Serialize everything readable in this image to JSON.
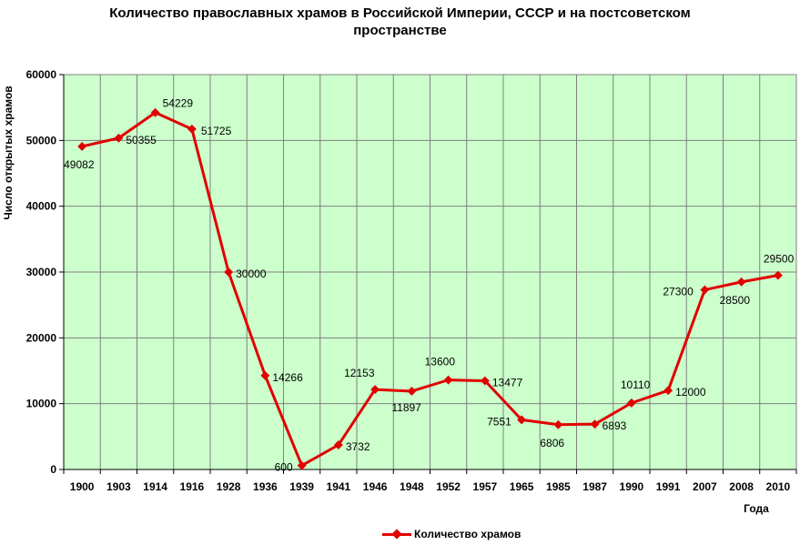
{
  "title_line1": "Количество православных храмов в Российской Империи, СССР и на постсоветском",
  "title_line2": "пространстве",
  "chart_data": {
    "type": "line",
    "title": "Количество православных храмов в Российской Империи, СССР и на постсоветском пространстве",
    "xlabel": "Года",
    "ylabel": "Число открытых храмов",
    "categories": [
      "1900",
      "1903",
      "1914",
      "1916",
      "1928",
      "1936",
      "1939",
      "1941",
      "1946",
      "1948",
      "1952",
      "1957",
      "1965",
      "1985",
      "1987",
      "1990",
      "1991",
      "2007",
      "2008",
      "2010"
    ],
    "series": [
      {
        "name": "Количество храмов",
        "color": "#e00000",
        "values": [
          49082,
          50355,
          54229,
          51725,
          30000,
          14266,
          600,
          3732,
          12153,
          11897,
          13600,
          13477,
          7551,
          6806,
          6893,
          10110,
          12000,
          27300,
          28500,
          29500
        ]
      }
    ],
    "ylim": [
      0,
      60000
    ],
    "yticks": [
      0,
      10000,
      20000,
      30000,
      40000,
      50000,
      60000
    ],
    "grid": true,
    "plot_background": "#ccffcc",
    "legend_position": "bottom"
  }
}
